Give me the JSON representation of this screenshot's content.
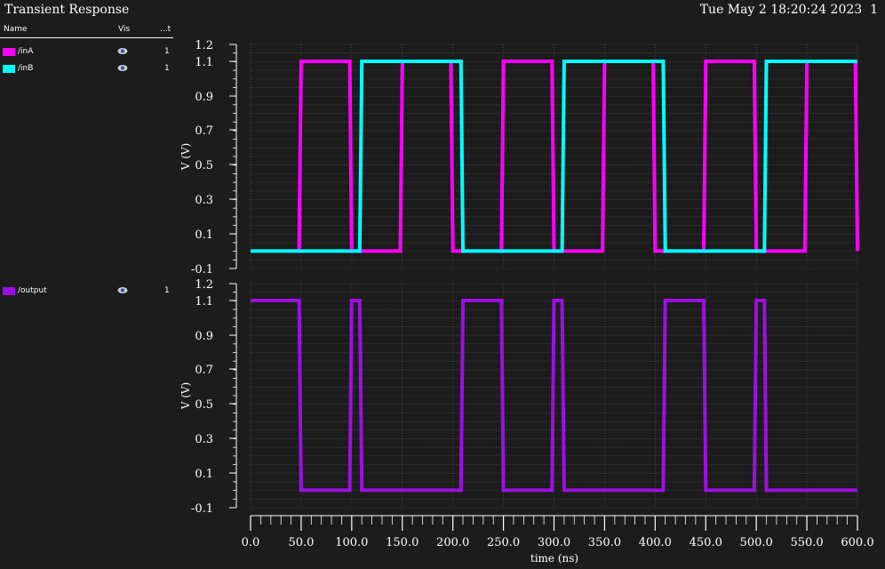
{
  "header": {
    "title": "Transient Response",
    "timestamp": "Tue May 2 18:20:24 2023",
    "page": "1"
  },
  "legend": {
    "col_name": "Name",
    "col_vis": "Vis",
    "col_third": "...t",
    "strips": [
      {
        "items": [
          {
            "name": "/inA",
            "color": "#ff00ff",
            "value": "1"
          },
          {
            "name": "/inB",
            "color": "#00ffff",
            "value": "1"
          }
        ]
      },
      {
        "items": [
          {
            "name": "/output",
            "color": "#9b10e0",
            "value": "1"
          }
        ]
      }
    ]
  },
  "chart_data": [
    {
      "type": "line",
      "xlabel": "time (ns)",
      "ylabel": "V (V)",
      "xlim": [
        0,
        600
      ],
      "ylim": [
        -0.1,
        1.2
      ],
      "yticks": [
        "1.2",
        "1.1",
        "0.9",
        "0.7",
        "0.5",
        "0.3",
        "0.1",
        "-0.1"
      ],
      "grid": true,
      "series": [
        {
          "name": "/inA",
          "color": "#ff00ff",
          "x": [
            0,
            48,
            50,
            98,
            100,
            148,
            150,
            198,
            200,
            248,
            250,
            298,
            300,
            348,
            350,
            398,
            400,
            448,
            450,
            498,
            500,
            548,
            550,
            598,
            600
          ],
          "y": [
            0,
            0,
            1.1,
            1.1,
            0,
            0,
            1.1,
            1.1,
            0,
            0,
            1.1,
            1.1,
            0,
            0,
            1.1,
            1.1,
            0,
            0,
            1.1,
            1.1,
            0,
            0,
            1.1,
            1.1,
            0
          ]
        },
        {
          "name": "/inB",
          "color": "#00ffff",
          "x": [
            0,
            108,
            110,
            208,
            210,
            308,
            310,
            408,
            410,
            508,
            510,
            600
          ],
          "y": [
            0,
            0,
            1.1,
            1.1,
            0,
            0,
            1.1,
            1.1,
            0,
            0,
            1.1,
            1.1
          ]
        }
      ]
    },
    {
      "type": "line",
      "xlabel": "time (ns)",
      "ylabel": "V (V)",
      "xlim": [
        0,
        600
      ],
      "ylim": [
        -0.1,
        1.2
      ],
      "yticks": [
        "1.2",
        "1.1",
        "0.9",
        "0.7",
        "0.5",
        "0.3",
        "0.1",
        "-0.1"
      ],
      "xticks": [
        "0.0",
        "50.0",
        "100.0",
        "150.0",
        "200.0",
        "250.0",
        "300.0",
        "350.0",
        "400.0",
        "450.0",
        "500.0",
        "550.0",
        "600.0"
      ],
      "grid": true,
      "series": [
        {
          "name": "/output",
          "color": "#9b10e0",
          "x": [
            0,
            48,
            50,
            98,
            100,
            108,
            110,
            208,
            210,
            248,
            250,
            298,
            300,
            308,
            310,
            408,
            410,
            448,
            450,
            498,
            500,
            508,
            510,
            600
          ],
          "y": [
            1.1,
            1.1,
            0,
            0,
            1.1,
            1.1,
            0,
            0,
            1.1,
            1.1,
            0,
            0,
            1.1,
            1.1,
            0,
            0,
            1.1,
            1.1,
            0,
            0,
            1.1,
            1.1,
            0,
            0
          ]
        }
      ]
    }
  ]
}
